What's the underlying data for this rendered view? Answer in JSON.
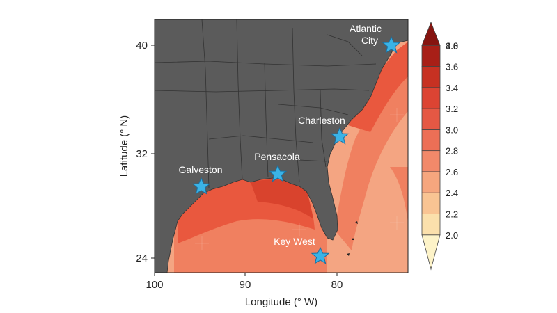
{
  "map": {
    "xlabel": "Longitude (° W)",
    "ylabel": "Latitude (° N)",
    "x_ticks": [
      "100",
      "90",
      "80"
    ],
    "y_ticks": [
      "40",
      "32",
      "24"
    ],
    "land_color": "#5b5b5b",
    "ocean_colors": [
      "#f7c59f",
      "#f4a582",
      "#f08060",
      "#e9583e",
      "#d9432d"
    ]
  },
  "cities": [
    {
      "name": "Atlantic City",
      "line1": "Atlantic",
      "line2": "City"
    },
    {
      "name": "Charleston",
      "line1": "Charleston"
    },
    {
      "name": "Pensacola",
      "line1": "Pensacola"
    },
    {
      "name": "Galveston",
      "line1": "Galveston"
    },
    {
      "name": "Key West",
      "line1": "Key West"
    }
  ],
  "colorbar": {
    "labels": [
      "4.0",
      "3.8",
      "3.6",
      "3.4",
      "3.2",
      "3.0",
      "2.8",
      "2.6",
      "2.4",
      "2.2",
      "2.0"
    ],
    "colors": [
      "#fdf3c8",
      "#fbe0ac",
      "#f9c493",
      "#f6a67e",
      "#f2896a",
      "#ec6f56",
      "#e55844",
      "#dc4433",
      "#c73122",
      "#a81f17",
      "#861410"
    ]
  }
}
